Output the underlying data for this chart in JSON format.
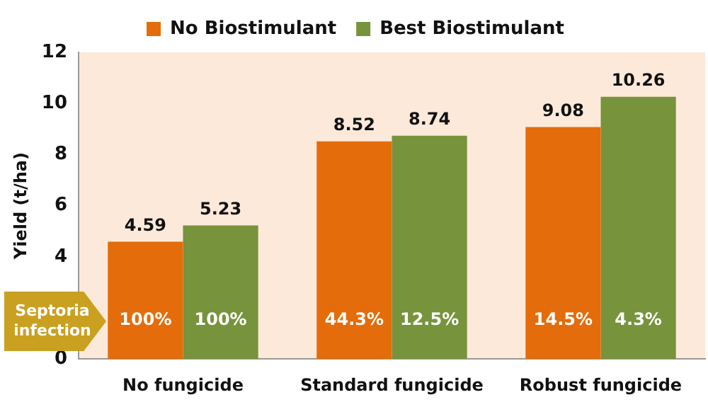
{
  "chart_data": {
    "type": "bar",
    "ylabel": "Yield (t/ha)",
    "categories": [
      "No fungicide",
      "Standard fungicide",
      "Robust fungicide"
    ],
    "series": [
      {
        "name": "No Biostimulant",
        "color": "#e46c0a",
        "values": [
          4.59,
          8.52,
          9.08
        ]
      },
      {
        "name": "Best Biostimulant",
        "color": "#77933c",
        "values": [
          5.23,
          8.74,
          10.26
        ]
      }
    ],
    "ylim": [
      0,
      12
    ],
    "yticks": [
      0,
      4,
      6,
      8,
      10,
      12
    ],
    "data_labels": true,
    "legend": "top",
    "grid": false,
    "annotations": [
      "Septoria infection",
      {
        "text": "100%",
        "x": "No fungicide",
        "y": 1.5
      },
      {
        "text": "100%",
        "x": "No fungicide",
        "y": 1.5
      },
      {
        "text": "44.3%",
        "x": "Standard fungicide",
        "y": 1.5
      },
      {
        "text": "12.5%",
        "x": "Standard fungicide",
        "y": 1.5
      },
      {
        "text": "14.5%",
        "x": "Robust fungicide",
        "y": 1.5
      },
      {
        "text": "4.3%",
        "x": "Robust fungicide",
        "y": 1.5
      }
    ]
  }
}
